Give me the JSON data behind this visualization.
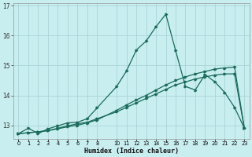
{
  "xlabel": "Humidex (Indice chaleur)",
  "bg_color": "#c8eef0",
  "grid_color": "#aad4d8",
  "line_color": "#1a6b5a",
  "hours": [
    0,
    1,
    2,
    3,
    4,
    5,
    6,
    7,
    8,
    10,
    11,
    12,
    13,
    14,
    15,
    16,
    17,
    18,
    19,
    20,
    21,
    22,
    23
  ],
  "line1": [
    12.72,
    12.9,
    12.72,
    12.88,
    12.98,
    13.08,
    13.1,
    13.22,
    13.58,
    14.3,
    14.82,
    15.52,
    15.82,
    16.3,
    16.72,
    15.5,
    14.3,
    14.18,
    14.7,
    14.45,
    14.1,
    13.6,
    12.9
  ],
  "line2": [
    12.72,
    12.75,
    12.78,
    12.82,
    12.88,
    12.95,
    13.0,
    13.08,
    13.18,
    13.5,
    13.68,
    13.85,
    14.0,
    14.18,
    14.35,
    14.5,
    14.62,
    14.72,
    14.8,
    14.88,
    14.92,
    14.95,
    12.9
  ],
  "line3": [
    12.72,
    12.75,
    12.78,
    12.82,
    12.9,
    12.98,
    13.05,
    13.1,
    13.22,
    13.45,
    13.6,
    13.75,
    13.9,
    14.05,
    14.2,
    14.35,
    14.45,
    14.55,
    14.62,
    14.68,
    14.72,
    14.72,
    12.9
  ],
  "xtick_positions": [
    0,
    1,
    2,
    3,
    4,
    5,
    6,
    7,
    8,
    10,
    11,
    12,
    13,
    14,
    15,
    16,
    17,
    18,
    19,
    20,
    21,
    22,
    23
  ],
  "xtick_labels": [
    "0",
    "1",
    "2",
    "3",
    "4",
    "5",
    "6",
    "7",
    "8",
    "10",
    "11",
    "12",
    "13",
    "14",
    "15",
    "16",
    "17",
    "18",
    "19",
    "20",
    "21",
    "22",
    "23"
  ],
  "yticks": [
    13,
    14,
    15,
    16,
    17
  ],
  "xlim": [
    -0.5,
    23.5
  ],
  "ylim": [
    12.55,
    17.1
  ]
}
